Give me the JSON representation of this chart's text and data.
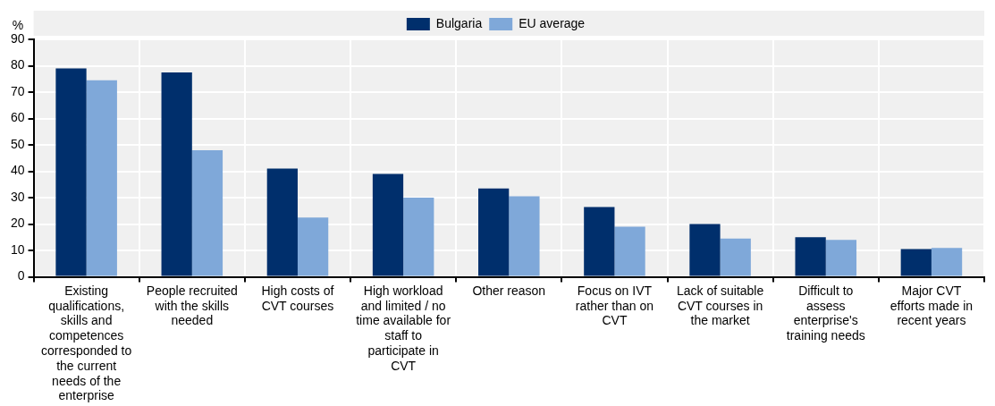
{
  "chart_data": {
    "type": "bar",
    "ylabel": "%",
    "categories": [
      "Existing qualifications, skills and competences corresponded to the current needs of the enterprise",
      "People recruited with the skills needed",
      "High costs of CVT courses",
      "High workload and limited / no time available for staff to participate in CVT",
      "Other reason",
      "Focus on IVT rather than on CVT",
      "Lack of suitable CVT courses in the market",
      "Difficult to assess enterprise's training needs",
      "Major CVT efforts made in recent years"
    ],
    "series": [
      {
        "name": "Bulgaria",
        "color": "#002f6c",
        "values": [
          79,
          77.5,
          41,
          39,
          33.5,
          26.5,
          20,
          15,
          10.5
        ]
      },
      {
        "name": "EU average",
        "color": "#7fa8d9",
        "values": [
          74.5,
          48,
          22.5,
          30,
          30.5,
          19,
          14.5,
          14,
          11
        ]
      }
    ],
    "ylim": [
      0,
      90
    ],
    "yticks": [
      0,
      10,
      20,
      30,
      40,
      50,
      60,
      70,
      80,
      90
    ],
    "grid": true,
    "legend": "top"
  }
}
